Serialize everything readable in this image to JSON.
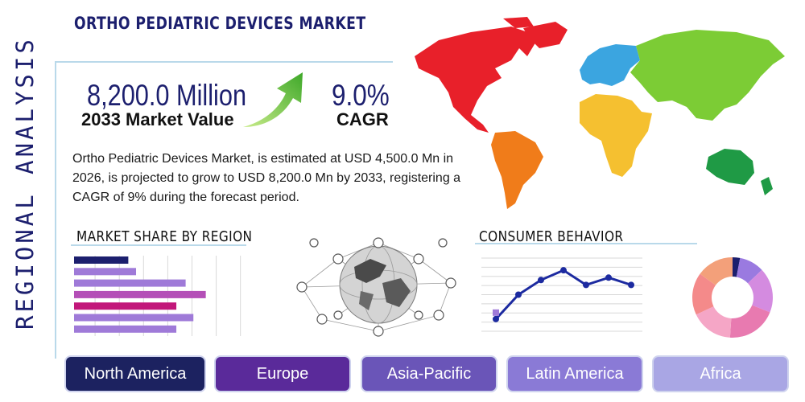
{
  "side_title": "REGIONAL ANALYSIS",
  "page_title": "ORTHO PEDIATRIC DEVICES MARKET",
  "market_value": {
    "value": "8,200.0 Million",
    "label": "2033 Market Value"
  },
  "cagr": {
    "value": "9.0%",
    "label": "CAGR"
  },
  "description": "Ortho Pediatric Devices Market, is estimated at USD 4,500.0 Mn in 2026, is projected to grow to USD 8,200.0 Mn by 2033, registering a CAGR of 9% during the forecast period.",
  "sections": {
    "market_share": "MARKET SHARE BY REGION",
    "consumer_behavior": "CONSUMER BEHAVIOR"
  },
  "regions": [
    {
      "label": "North America",
      "color": "#1c2260"
    },
    {
      "label": "Europe",
      "color": "#5a2a9a"
    },
    {
      "label": "Asia-Pacific",
      "color": "#6a55b8"
    },
    {
      "label": "Latin America",
      "color": "#8a7ad6"
    },
    {
      "label": "Africa",
      "color": "#a9a6e4"
    }
  ],
  "map_colors": {
    "north_america": "#e8202a",
    "south_america": "#f07c1a",
    "europe": "#3ba5e0",
    "africa": "#f5c030",
    "asia": "#7ccc35",
    "oceania": "#1f9a45"
  },
  "chart_data": [
    {
      "type": "bar",
      "orientation": "horizontal",
      "values": [
        0.35,
        0.4,
        0.72,
        0.85,
        0.66,
        0.77,
        0.66
      ],
      "colors": [
        "#1c1f6e",
        "#9f7ad8",
        "#9f7ad8",
        "#b44fb7",
        "#c2177a",
        "#9f7ad8",
        "#9f7ad8"
      ]
    },
    {
      "type": "line",
      "values": [
        1,
        3,
        4.2,
        5,
        3.8,
        4.4,
        3.8
      ],
      "ylim": [
        0,
        6
      ],
      "color": "#1c2aa0"
    },
    {
      "type": "pie",
      "style": "donut",
      "values": [
        3,
        10,
        18,
        20,
        17,
        17,
        15
      ],
      "colors": [
        "#1c1f6e",
        "#9a7ae0",
        "#d48be0",
        "#e87ab0",
        "#f5a6c6",
        "#f48a8a",
        "#f3a07a"
      ]
    }
  ]
}
